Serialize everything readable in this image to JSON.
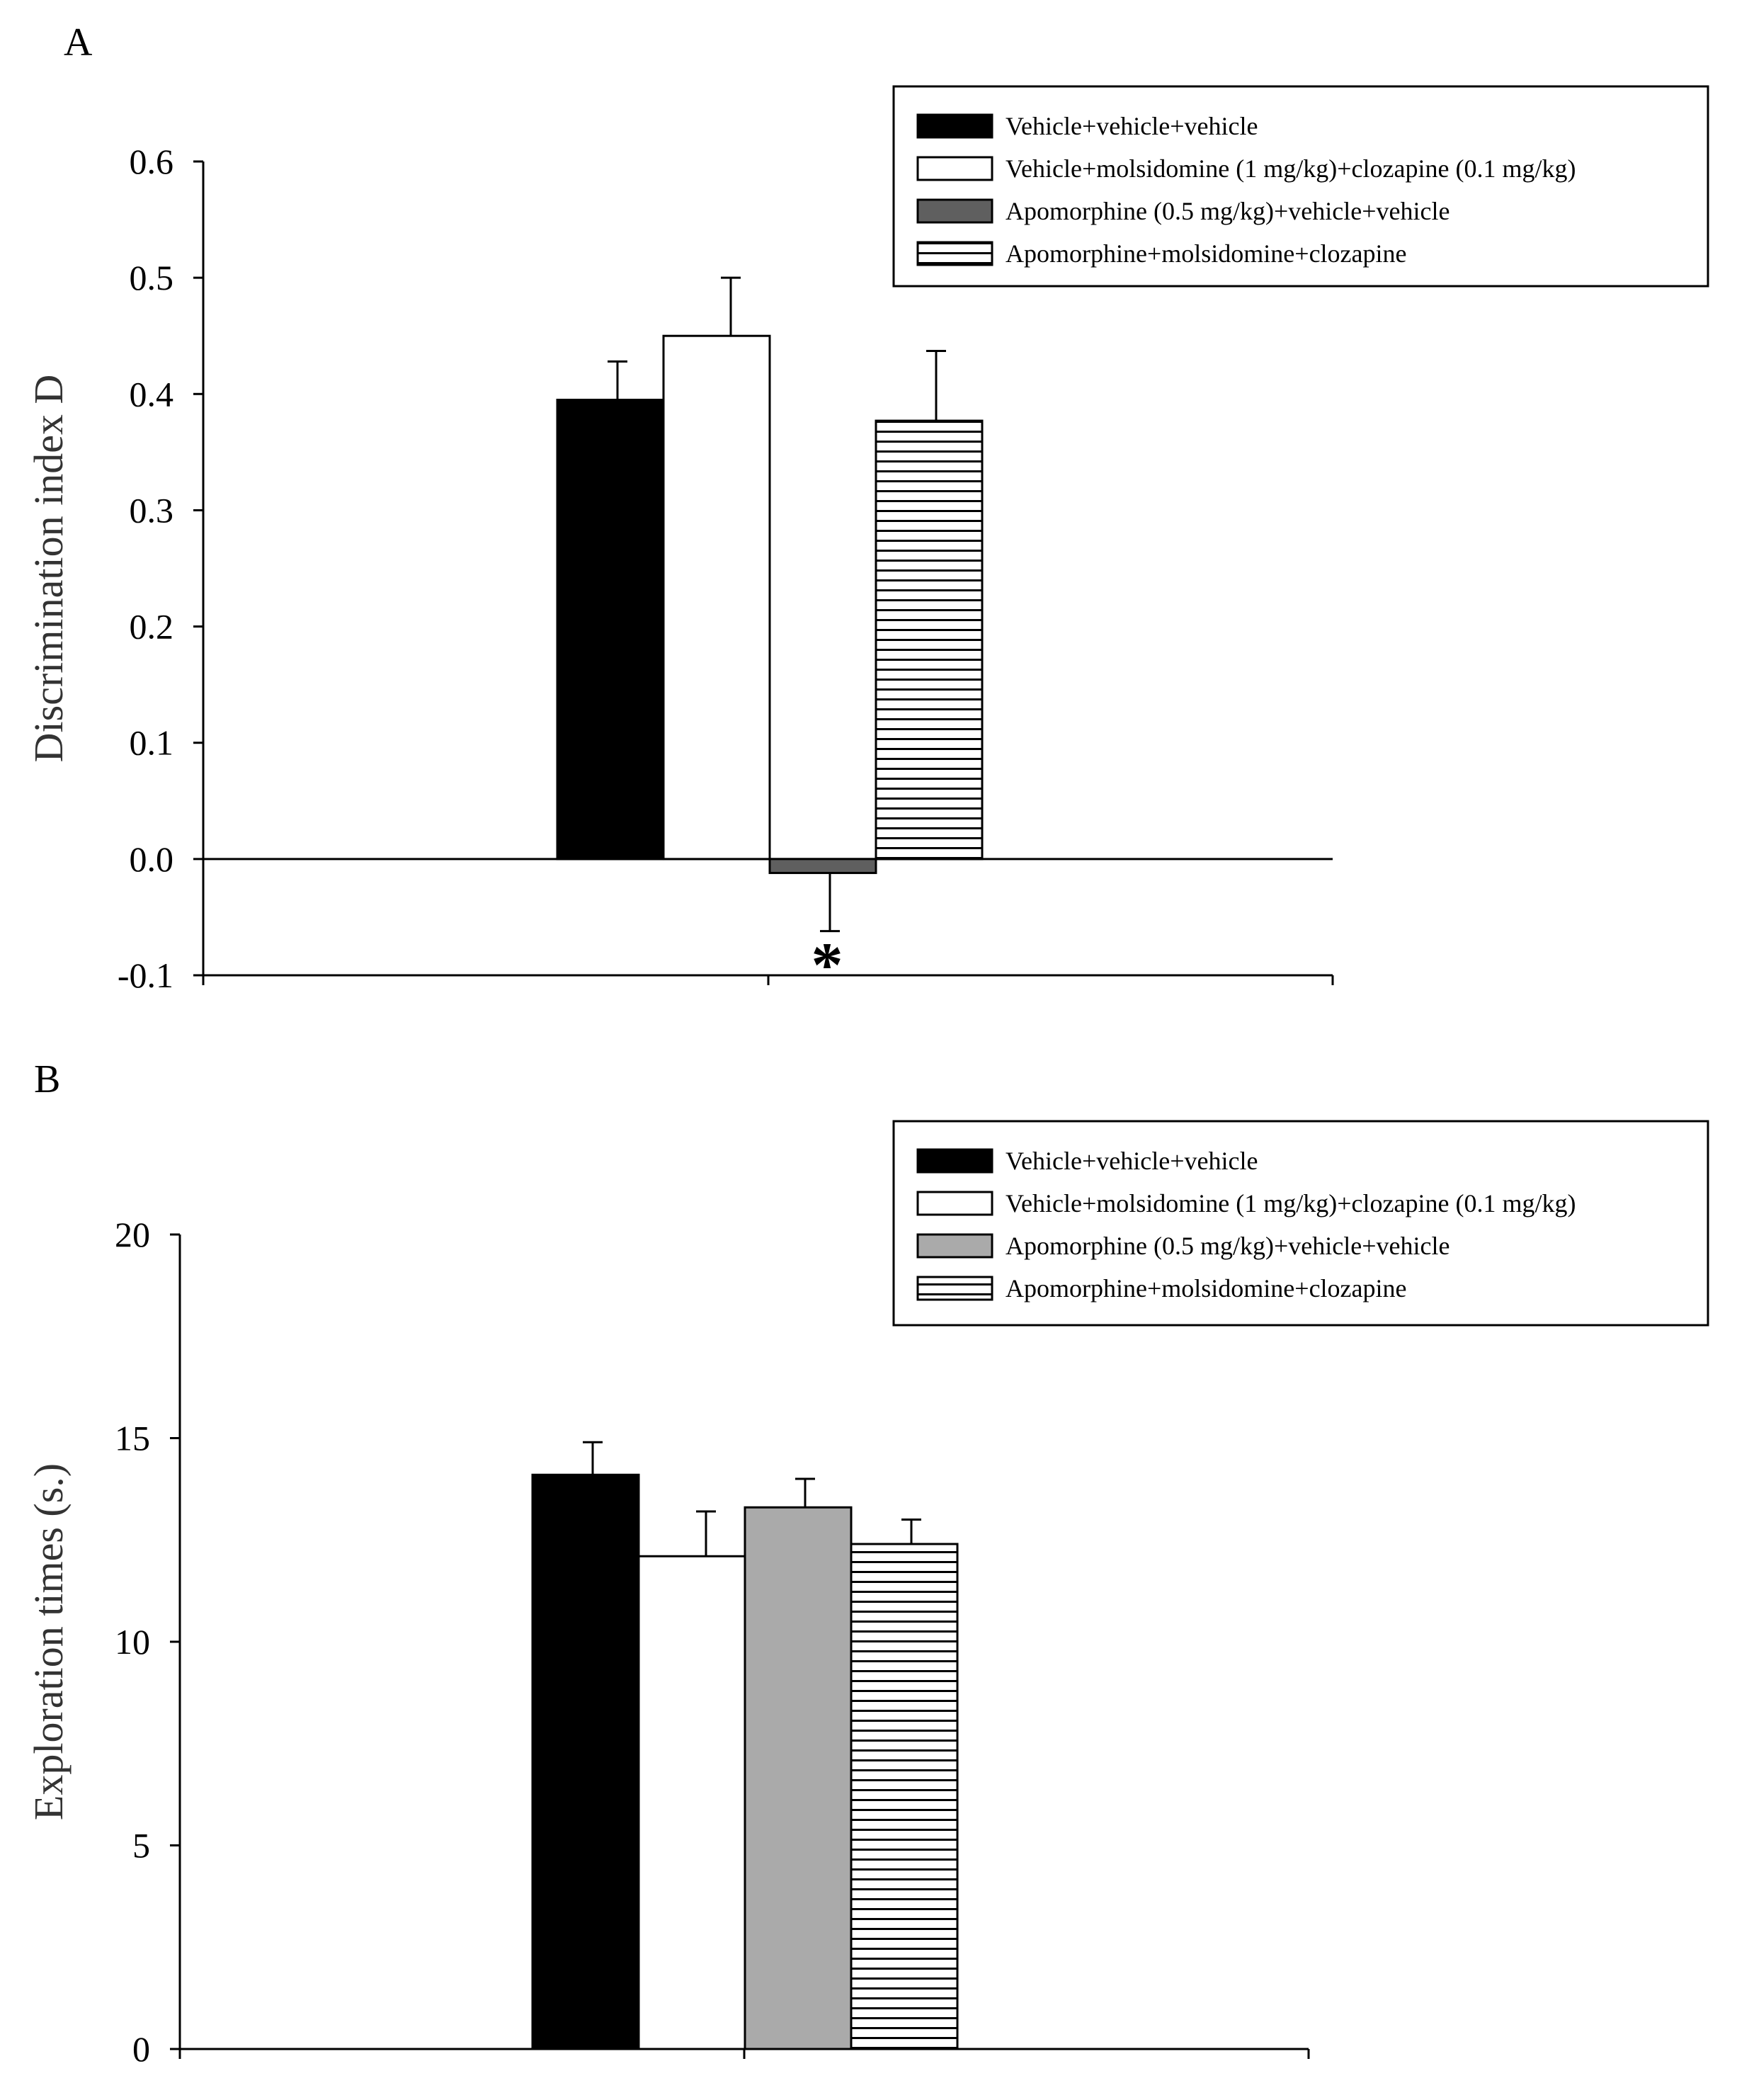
{
  "figure": {
    "panels": [
      "A",
      "B"
    ]
  },
  "chart_data": [
    {
      "panel": "A",
      "type": "bar",
      "title": "",
      "xlabel": "",
      "ylabel": "Discrimination index D",
      "ylim": [
        -0.1,
        0.6
      ],
      "yticks": [
        "0.6",
        "0.5",
        "0.4",
        "0.3",
        "0.2",
        "0.1",
        "0.0",
        "-0.1"
      ],
      "ytick_values": [
        0.6,
        0.5,
        0.4,
        0.3,
        0.2,
        0.1,
        0.0,
        -0.1
      ],
      "legend_position": "top-right",
      "grid": false,
      "series": [
        {
          "name": "Vehicle+vehicle+vehicle",
          "value": 0.395,
          "error": 0.033,
          "fill": "#000000",
          "pattern": "solid"
        },
        {
          "name": "Vehicle+molsidomine (1 mg/kg)+clozapine (0.1 mg/kg)",
          "value": 0.45,
          "error": 0.05,
          "fill": "#ffffff",
          "pattern": "solid"
        },
        {
          "name": "Apomorphine (0.5 mg/kg)+vehicle+vehicle",
          "value": -0.012,
          "error": 0.05,
          "fill": "#5f5f5f",
          "pattern": "solid",
          "annotation": "*"
        },
        {
          "name": "Apomorphine+molsidomine+clozapine",
          "value": 0.377,
          "error": 0.06,
          "fill": "#ffffff",
          "pattern": "hlines"
        }
      ]
    },
    {
      "panel": "B",
      "type": "bar",
      "title": "",
      "xlabel": "",
      "ylabel": "Exploration times (s.)",
      "ylim": [
        0,
        20
      ],
      "yticks": [
        "20",
        "15",
        "10",
        "5",
        "0"
      ],
      "ytick_values": [
        20,
        15,
        10,
        5,
        0
      ],
      "legend_position": "top-right",
      "grid": false,
      "series": [
        {
          "name": "Vehicle+vehicle+vehicle",
          "value": 14.1,
          "error": 0.8,
          "fill": "#000000",
          "pattern": "solid"
        },
        {
          "name": "Vehicle+molsidomine (1 mg/kg)+clozapine (0.1 mg/kg)",
          "value": 12.1,
          "error": 1.1,
          "fill": "#ffffff",
          "pattern": "solid"
        },
        {
          "name": "Apomorphine (0.5 mg/kg)+vehicle+vehicle",
          "value": 13.3,
          "error": 0.7,
          "fill": "#aaaaaa",
          "pattern": "solid"
        },
        {
          "name": "Apomorphine+molsidomine+clozapine",
          "value": 12.4,
          "error": 0.6,
          "fill": "#ffffff",
          "pattern": "hlines"
        }
      ]
    }
  ]
}
